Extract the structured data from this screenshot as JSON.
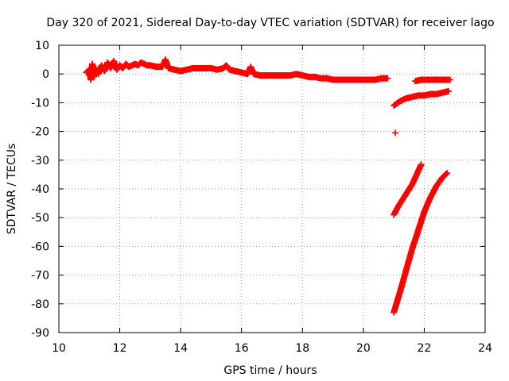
{
  "chart_data": {
    "type": "scatter",
    "title": "Day 320 of 2021, Sidereal Day-to-day VTEC variation (SDTVAR) for receiver lago",
    "xlabel": "GPS time / hours",
    "ylabel": "SDTVAR / TECUs",
    "xlim": [
      10,
      24
    ],
    "ylim": [
      -90,
      10
    ],
    "xticks": [
      10,
      12,
      14,
      16,
      18,
      20,
      22,
      24
    ],
    "yticks": [
      10,
      0,
      -10,
      -20,
      -30,
      -40,
      -50,
      -60,
      -70,
      -80,
      -90
    ],
    "grid": true,
    "marker": "plus",
    "color": "#ff0000",
    "series": [
      {
        "name": "main-band",
        "points": [
          [
            10.9,
            0.5
          ],
          [
            11.0,
            1.5
          ],
          [
            11.05,
            -2.0
          ],
          [
            11.1,
            3.5
          ],
          [
            11.15,
            -1.0
          ],
          [
            11.2,
            2.0
          ],
          [
            11.3,
            0.0
          ],
          [
            11.4,
            3.0
          ],
          [
            11.5,
            1.0
          ],
          [
            11.6,
            4.0
          ],
          [
            11.7,
            2.0
          ],
          [
            11.8,
            4.5
          ],
          [
            11.9,
            1.5
          ],
          [
            12.0,
            3.0
          ],
          [
            12.1,
            2.0
          ],
          [
            12.2,
            3.5
          ],
          [
            12.3,
            2.5
          ],
          [
            12.4,
            3.0
          ],
          [
            12.5,
            3.5
          ],
          [
            12.6,
            3.0
          ],
          [
            12.7,
            4.0
          ],
          [
            12.8,
            3.5
          ],
          [
            12.9,
            3.0
          ],
          [
            13.0,
            3.0
          ],
          [
            13.2,
            2.5
          ],
          [
            13.4,
            2.5
          ],
          [
            13.5,
            5.0
          ],
          [
            13.6,
            2.0
          ],
          [
            13.8,
            1.5
          ],
          [
            14.0,
            1.0
          ],
          [
            14.2,
            1.5
          ],
          [
            14.4,
            2.0
          ],
          [
            14.6,
            2.0
          ],
          [
            14.8,
            2.0
          ],
          [
            15.0,
            2.0
          ],
          [
            15.2,
            1.5
          ],
          [
            15.4,
            2.0
          ],
          [
            15.5,
            3.0
          ],
          [
            15.6,
            1.5
          ],
          [
            15.8,
            1.0
          ],
          [
            16.0,
            0.5
          ],
          [
            16.2,
            0.0
          ],
          [
            16.3,
            2.5
          ],
          [
            16.4,
            0.0
          ],
          [
            16.6,
            -0.5
          ],
          [
            16.8,
            -0.5
          ],
          [
            17.0,
            -0.5
          ],
          [
            17.2,
            -0.5
          ],
          [
            17.4,
            -0.5
          ],
          [
            17.6,
            -0.5
          ],
          [
            17.8,
            0.0
          ],
          [
            18.0,
            -0.5
          ],
          [
            18.2,
            -1.0
          ],
          [
            18.4,
            -1.0
          ],
          [
            18.6,
            -1.5
          ],
          [
            18.8,
            -1.5
          ],
          [
            19.0,
            -2.0
          ],
          [
            19.2,
            -2.0
          ],
          [
            19.4,
            -2.0
          ],
          [
            19.6,
            -2.0
          ],
          [
            19.8,
            -2.0
          ],
          [
            20.0,
            -2.0
          ],
          [
            20.2,
            -2.0
          ],
          [
            20.4,
            -2.0
          ],
          [
            20.6,
            -1.5
          ],
          [
            20.8,
            -1.5
          ]
        ]
      },
      {
        "name": "upper-right-segment",
        "points": [
          [
            21.7,
            -2.5
          ],
          [
            21.9,
            -2.0
          ],
          [
            22.1,
            -2.0
          ],
          [
            22.3,
            -2.0
          ],
          [
            22.5,
            -2.0
          ],
          [
            22.7,
            -2.0
          ],
          [
            22.85,
            -2.0
          ]
        ]
      },
      {
        "name": "curve-segment",
        "points": [
          [
            21.0,
            -11.0
          ],
          [
            21.2,
            -9.5
          ],
          [
            21.4,
            -8.5
          ],
          [
            21.6,
            -8.0
          ],
          [
            21.8,
            -7.5
          ],
          [
            22.0,
            -7.5
          ],
          [
            22.2,
            -7.0
          ],
          [
            22.4,
            -7.0
          ],
          [
            22.6,
            -6.5
          ],
          [
            22.8,
            -6.0
          ]
        ]
      },
      {
        "name": "isolated-point",
        "points": [
          [
            21.05,
            -20.5
          ]
        ]
      },
      {
        "name": "steep-line-1",
        "points": [
          [
            21.0,
            -49.0
          ],
          [
            21.15,
            -46.0
          ],
          [
            21.3,
            -43.5
          ],
          [
            21.45,
            -41.0
          ],
          [
            21.6,
            -38.5
          ],
          [
            21.75,
            -35.0
          ],
          [
            21.9,
            -31.5
          ]
        ]
      },
      {
        "name": "steep-line-2",
        "points": [
          [
            21.0,
            -83.0
          ],
          [
            21.2,
            -76.0
          ],
          [
            21.4,
            -68.5
          ],
          [
            21.6,
            -61.0
          ],
          [
            21.8,
            -54.5
          ],
          [
            22.0,
            -48.0
          ],
          [
            22.2,
            -43.0
          ],
          [
            22.4,
            -39.0
          ],
          [
            22.6,
            -36.0
          ],
          [
            22.75,
            -34.5
          ]
        ]
      }
    ]
  }
}
